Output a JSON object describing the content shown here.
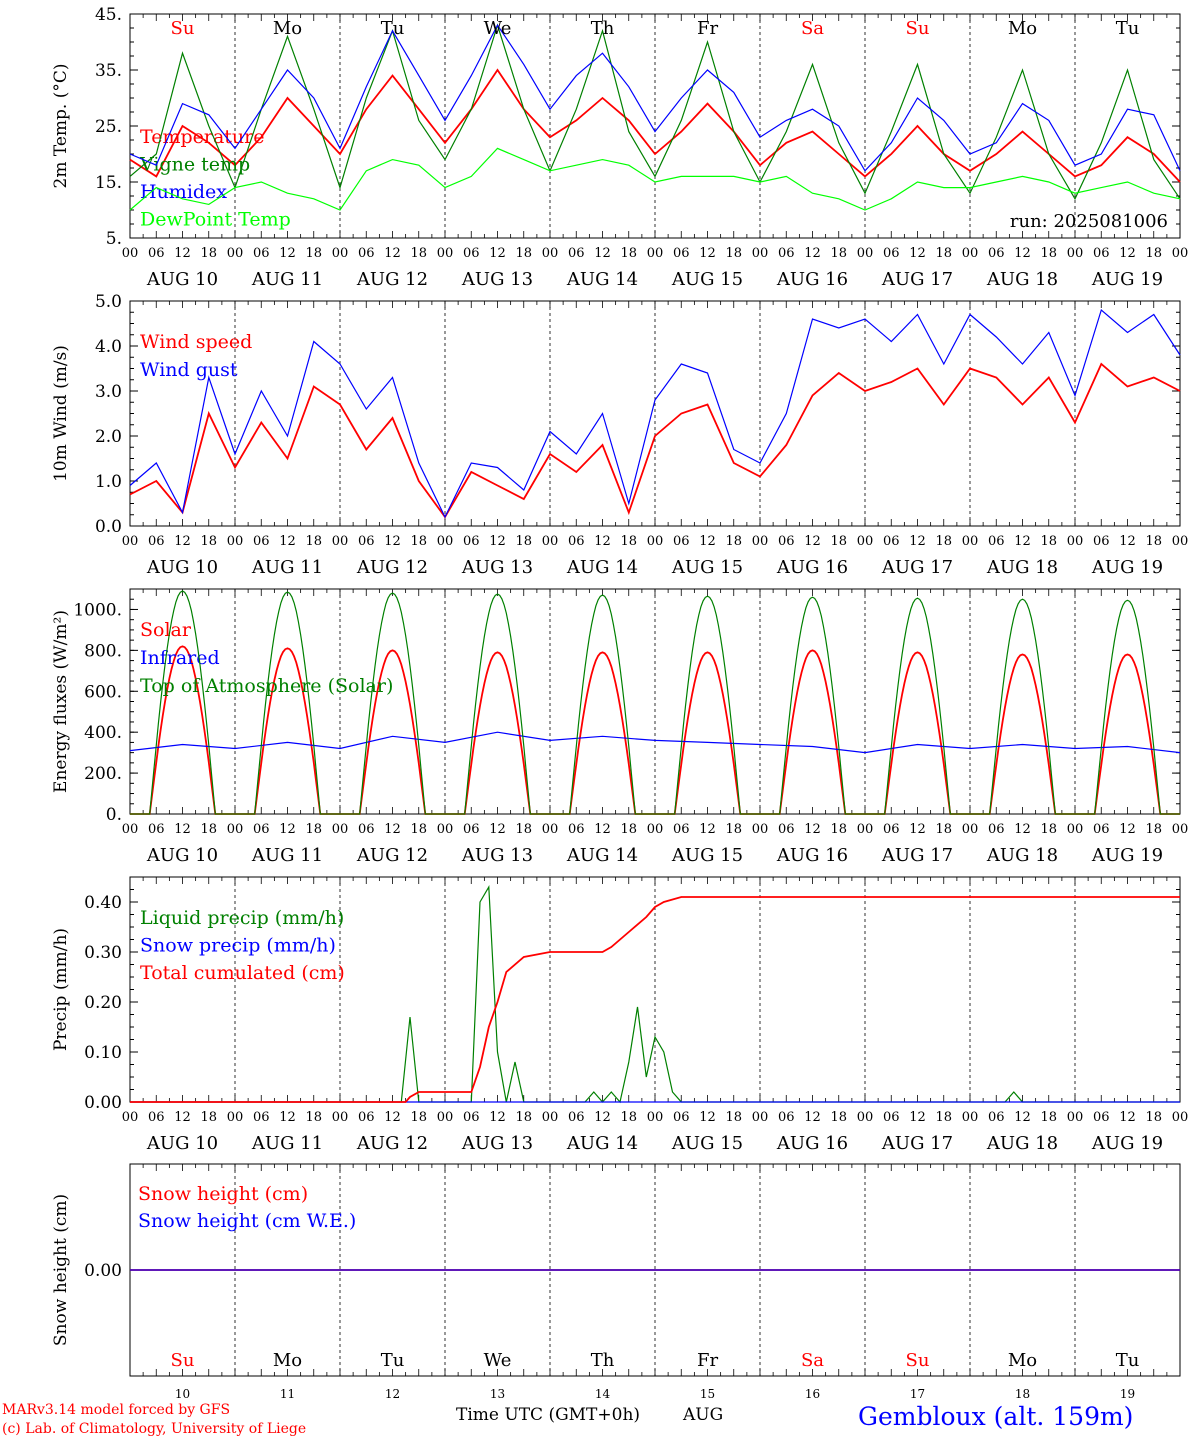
{
  "run_label": "run: 2025081006",
  "footer": {
    "credit_line1": "MARv3.14 model forced by GFS",
    "credit_line2": "(c) Lab. of Climatology, University of Liege",
    "xaxis_title": "Time UTC (GMT+0h)",
    "month": "AUG",
    "location": "Gembloux (alt. 159m)"
  },
  "colors": {
    "red": "#ff0000",
    "blue": "#0000ff",
    "green": "#008000",
    "lime": "#00ff00",
    "axis": "#000000",
    "grid": "#000000"
  },
  "days": {
    "dates": [
      "AUG 10",
      "AUG 11",
      "AUG 12",
      "AUG 13",
      "AUG 14",
      "AUG 15",
      "AUG 16",
      "AUG 17",
      "AUG 18",
      "AUG 19"
    ],
    "weekdays": [
      "Su",
      "Mo",
      "Tu",
      "We",
      "Th",
      "Fr",
      "Sa",
      "Su",
      "Mo",
      "Tu"
    ],
    "weekday_colors": [
      "#ff0000",
      "#000000",
      "#000000",
      "#000000",
      "#000000",
      "#000000",
      "#ff0000",
      "#ff0000",
      "#000000",
      "#000000"
    ],
    "day_numbers": [
      "10",
      "11",
      "12",
      "13",
      "14",
      "15",
      "16",
      "17",
      "18",
      "19"
    ],
    "hour_labels": [
      "00",
      "06",
      "12",
      "18"
    ],
    "final_hour_label": "00"
  },
  "chart_data": [
    {
      "type": "line",
      "ylabel": "2m Temp. (°C)",
      "ylim": [
        5,
        45
      ],
      "yticks": [
        5,
        15,
        25,
        35,
        45
      ],
      "ytick_labels": [
        "5.",
        "15.",
        "25.",
        "35.",
        "45."
      ],
      "x_hours": [
        0,
        6,
        12,
        18,
        24,
        30,
        36,
        42,
        48,
        54,
        60,
        66,
        72,
        78,
        84,
        90,
        96,
        102,
        108,
        114,
        120,
        126,
        132,
        138,
        144,
        150,
        156,
        162,
        168,
        174,
        180,
        186,
        192,
        198,
        204,
        210,
        216,
        222,
        228,
        234,
        240
      ],
      "series": [
        {
          "name": "Temperature",
          "color": "#ff0000",
          "values": [
            19,
            16,
            25,
            22,
            18,
            23,
            30,
            25,
            20,
            28,
            34,
            28,
            22,
            28,
            35,
            28,
            23,
            26,
            30,
            26,
            20,
            24,
            29,
            24,
            18,
            22,
            24,
            20,
            16,
            20,
            25,
            20,
            17,
            20,
            24,
            20,
            16,
            18,
            23,
            20,
            15
          ]
        },
        {
          "name": "Vigne temp",
          "color": "#008000",
          "values": [
            16,
            20,
            38,
            25,
            14,
            28,
            41,
            28,
            14,
            30,
            42,
            26,
            19,
            28,
            43,
            28,
            17,
            28,
            42,
            24,
            16,
            26,
            40,
            24,
            15,
            24,
            36,
            22,
            13,
            24,
            36,
            20,
            13,
            23,
            35,
            20,
            12,
            22,
            35,
            19,
            12
          ]
        },
        {
          "name": "Humidex",
          "color": "#0000ff",
          "values": [
            20,
            18,
            29,
            27,
            21,
            28,
            35,
            30,
            21,
            32,
            42,
            34,
            26,
            34,
            43,
            36,
            28,
            34,
            38,
            32,
            24,
            30,
            35,
            31,
            23,
            26,
            28,
            25,
            17,
            22,
            30,
            26,
            20,
            22,
            29,
            26,
            18,
            20,
            28,
            27,
            17
          ]
        },
        {
          "name": "DewPoint Temp",
          "color": "#00ff00",
          "values": [
            10,
            14,
            12,
            11,
            14,
            15,
            13,
            12,
            10,
            17,
            19,
            18,
            14,
            16,
            21,
            19,
            17,
            18,
            19,
            18,
            15,
            16,
            16,
            16,
            15,
            16,
            13,
            12,
            10,
            12,
            15,
            14,
            14,
            15,
            16,
            15,
            13,
            14,
            15,
            13,
            12
          ]
        }
      ]
    },
    {
      "type": "line",
      "ylabel": "10m Wind (m/s)",
      "ylim": [
        0,
        5
      ],
      "yticks": [
        0,
        1,
        2,
        3,
        4,
        5
      ],
      "ytick_labels": [
        "0.0",
        "1.0",
        "2.0",
        "3.0",
        "4.0",
        "5.0"
      ],
      "x_hours": [
        0,
        6,
        12,
        18,
        24,
        30,
        36,
        42,
        48,
        54,
        60,
        66,
        72,
        78,
        84,
        90,
        96,
        102,
        108,
        114,
        120,
        126,
        132,
        138,
        144,
        150,
        156,
        162,
        168,
        174,
        180,
        186,
        192,
        198,
        204,
        210,
        216,
        222,
        228,
        234,
        240
      ],
      "series": [
        {
          "name": "Wind speed",
          "color": "#ff0000",
          "values": [
            0.7,
            1.0,
            0.3,
            2.5,
            1.3,
            2.3,
            1.5,
            3.1,
            2.7,
            1.7,
            2.4,
            1.0,
            0.2,
            1.2,
            0.9,
            0.6,
            1.6,
            1.2,
            1.8,
            0.3,
            2.0,
            2.5,
            2.7,
            1.4,
            1.1,
            1.8,
            2.9,
            3.4,
            3.0,
            3.2,
            3.5,
            2.7,
            3.5,
            3.3,
            2.7,
            3.3,
            2.3,
            3.6,
            3.1,
            3.3,
            3.0
          ]
        },
        {
          "name": "Wind gust",
          "color": "#0000ff",
          "values": [
            0.9,
            1.4,
            0.3,
            3.3,
            1.6,
            3.0,
            2.0,
            4.1,
            3.6,
            2.6,
            3.3,
            1.4,
            0.2,
            1.4,
            1.3,
            0.8,
            2.1,
            1.6,
            2.5,
            0.5,
            2.8,
            3.6,
            3.4,
            1.7,
            1.4,
            2.5,
            4.6,
            4.4,
            4.6,
            4.1,
            4.7,
            3.6,
            4.7,
            4.2,
            3.6,
            4.3,
            2.9,
            4.8,
            4.3,
            4.7,
            3.8
          ]
        }
      ]
    },
    {
      "type": "line",
      "ylabel": "Energy fluxes (W/m²)",
      "ylim": [
        0,
        1100
      ],
      "yticks": [
        0,
        200,
        400,
        600,
        800,
        1000
      ],
      "ytick_labels": [
        "0.",
        "200.",
        "400.",
        "600.",
        "800.",
        "1000."
      ],
      "solar_noon_hour": 12,
      "daylight_hours": [
        4.5,
        19.5
      ],
      "series": [
        {
          "name": "Solar",
          "color": "#ff0000",
          "peaks": [
            820,
            810,
            800,
            790,
            790,
            790,
            800,
            790,
            780,
            780
          ]
        },
        {
          "name": "Infrared",
          "color": "#0000ff",
          "x_hours": [
            0,
            12,
            24,
            36,
            48,
            60,
            72,
            84,
            96,
            108,
            120,
            132,
            144,
            156,
            168,
            180,
            192,
            204,
            216,
            228,
            240
          ],
          "values": [
            310,
            340,
            320,
            350,
            320,
            380,
            350,
            400,
            360,
            380,
            360,
            350,
            340,
            330,
            300,
            340,
            320,
            340,
            320,
            330,
            300
          ]
        },
        {
          "name": "Top of Atmosphere (Solar)",
          "color": "#008000",
          "peaks": [
            1090,
            1085,
            1080,
            1075,
            1070,
            1065,
            1060,
            1055,
            1050,
            1045
          ]
        }
      ]
    },
    {
      "type": "line",
      "ylabel": "Precip (mm/h)",
      "ylim": [
        0,
        0.45
      ],
      "yticks": [
        0,
        0.1,
        0.2,
        0.3,
        0.4
      ],
      "ytick_labels": [
        "0.00",
        "0.10",
        "0.20",
        "0.30",
        "0.40"
      ],
      "series": [
        {
          "name": "Liquid precip (mm/h)",
          "color": "#008000",
          "x_hours": [
            0,
            62,
            64,
            66,
            68,
            78,
            80,
            82,
            84,
            86,
            88,
            90,
            92,
            94,
            96,
            104,
            106,
            108,
            110,
            112,
            114,
            116,
            118,
            120,
            122,
            124,
            126,
            128,
            200,
            202,
            204,
            240
          ],
          "values": [
            0,
            0,
            0.17,
            0,
            0,
            0,
            0.4,
            0.43,
            0.1,
            0,
            0.08,
            0,
            0,
            0,
            0,
            0,
            0.02,
            0,
            0.02,
            0,
            0.08,
            0.19,
            0.05,
            0.13,
            0.1,
            0.02,
            0,
            0,
            0,
            0.02,
            0,
            0
          ]
        },
        {
          "name": "Snow precip (mm/h)",
          "color": "#0000ff",
          "x_hours": [
            0,
            240
          ],
          "values": [
            0,
            0
          ]
        },
        {
          "name": "Total cumulated (cm)",
          "color": "#ff0000",
          "x_hours": [
            0,
            60,
            63,
            64,
            66,
            72,
            78,
            80,
            82,
            84,
            86,
            90,
            96,
            102,
            108,
            110,
            114,
            118,
            120,
            122,
            126,
            132,
            144,
            186,
            200,
            202,
            240
          ],
          "values": [
            0,
            0,
            0,
            0.01,
            0.02,
            0.02,
            0.02,
            0.07,
            0.15,
            0.2,
            0.26,
            0.29,
            0.3,
            0.3,
            0.3,
            0.31,
            0.34,
            0.37,
            0.39,
            0.4,
            0.41,
            0.41,
            0.41,
            0.41,
            0.41,
            0.41,
            0.41
          ]
        }
      ]
    },
    {
      "type": "line",
      "ylabel": "Snow height (cm)",
      "ylim": [
        -1,
        1
      ],
      "yticks": [
        0
      ],
      "ytick_labels": [
        "0.00"
      ],
      "series": [
        {
          "name": "Snow height (cm)",
          "color": "#ff0000",
          "x_hours": [
            0,
            240
          ],
          "values": [
            0,
            0
          ]
        },
        {
          "name": "Snow height (cm W.E.)",
          "color": "#0000ff",
          "x_hours": [
            0,
            240
          ],
          "values": [
            0,
            0
          ]
        }
      ]
    }
  ]
}
